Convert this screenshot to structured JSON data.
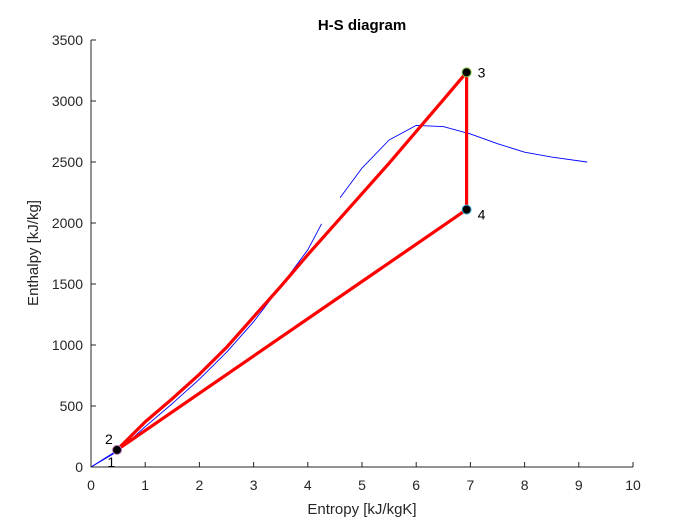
{
  "chart_data": {
    "type": "line",
    "title": "H-S diagram",
    "xlabel": "Entropy [kJ/kgK]",
    "ylabel": "Enthalpy [kJ/kg]",
    "xlim": [
      0,
      10
    ],
    "ylim": [
      0,
      3500
    ],
    "xticks": [
      0,
      1,
      2,
      3,
      4,
      5,
      6,
      7,
      8,
      9,
      10
    ],
    "yticks": [
      0,
      500,
      1000,
      1500,
      2000,
      2500,
      3000,
      3500
    ],
    "grid": false,
    "legend": null,
    "series": [
      {
        "name": "saturation-dome-liquid",
        "color": "#0000ff",
        "x": [
          0.0,
          0.5,
          1.0,
          1.5,
          2.0,
          2.5,
          3.0,
          3.5,
          4.0,
          4.25
        ],
        "y": [
          0,
          130,
          330,
          520,
          720,
          940,
          1190,
          1480,
          1780,
          1990
        ]
      },
      {
        "name": "saturation-dome-vapor",
        "color": "#0000ff",
        "x": [
          4.6,
          5.0,
          5.5,
          6.0,
          6.5,
          7.0,
          7.5,
          8.0,
          8.5,
          9.15
        ],
        "y": [
          2210,
          2450,
          2680,
          2800,
          2790,
          2730,
          2650,
          2580,
          2540,
          2500
        ]
      },
      {
        "name": "cycle-1-2",
        "color": "#0000ff",
        "x": [
          0.0,
          0.5
        ],
        "y": [
          0,
          140
        ]
      },
      {
        "name": "cycle-2-3",
        "color": "#ff0000",
        "x": [
          0.48,
          1.0,
          1.5,
          2.0,
          2.5,
          3.0,
          3.5,
          4.0,
          4.5,
          5.0,
          5.5,
          6.0,
          6.5,
          6.93
        ],
        "y": [
          140,
          370,
          560,
          760,
          980,
          1230,
          1480,
          1740,
          1990,
          2240,
          2490,
          2750,
          3010,
          3235
        ]
      },
      {
        "name": "cycle-3-4",
        "color": "#ff0000",
        "x": [
          6.93,
          6.93
        ],
        "y": [
          3235,
          2110
        ]
      },
      {
        "name": "cycle-4-1",
        "color": "#ff0000",
        "x": [
          6.93,
          0.48
        ],
        "y": [
          2110,
          140
        ]
      }
    ],
    "points": [
      {
        "label": "1",
        "x": 0.45,
        "y": 130
      },
      {
        "label": "2",
        "x": 0.48,
        "y": 140
      },
      {
        "label": "3",
        "x": 6.93,
        "y": 3235
      },
      {
        "label": "4",
        "x": 6.93,
        "y": 2110
      }
    ]
  }
}
